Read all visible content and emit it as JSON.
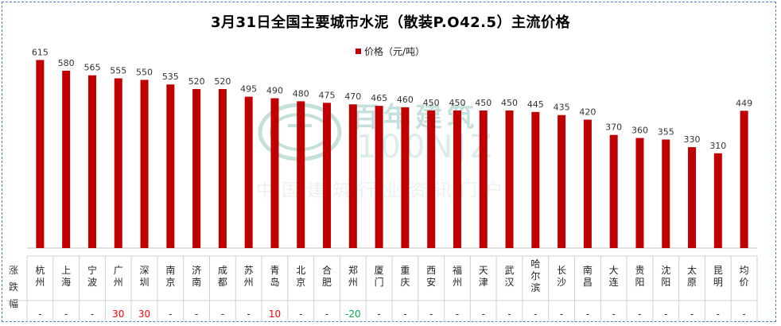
{
  "chart_data": {
    "type": "bar",
    "title": "3月31日全国主要城市水泥（散装P.O42.5）主流价格",
    "legend": "价格（元/吨）",
    "legend_position": "top-center",
    "bar_color": "#c00000",
    "ylim": [
      0,
      650
    ],
    "grid": false,
    "categories": [
      "杭州",
      "上海",
      "宁波",
      "广州",
      "深圳",
      "南京",
      "济南",
      "成都",
      "苏州",
      "青岛",
      "北京",
      "合肥",
      "郑州",
      "厦门",
      "重庆",
      "西安",
      "福州",
      "天津",
      "武汉",
      "哈尔滨",
      "长沙",
      "南昌",
      "大连",
      "贵阳",
      "沈阳",
      "太原",
      "昆明",
      "均价"
    ],
    "series": [
      {
        "name": "价格（元/吨）",
        "values": [
          615,
          580,
          565,
          555,
          550,
          535,
          520,
          520,
          495,
          490,
          480,
          475,
          470,
          465,
          460,
          450,
          450,
          450,
          450,
          445,
          435,
          420,
          370,
          360,
          355,
          330,
          310,
          449
        ]
      }
    ]
  },
  "change_row": {
    "label": "涨跌幅",
    "values": [
      "-",
      "-",
      "-",
      "30",
      "30",
      "-",
      "-",
      "-",
      "-",
      "10",
      "-",
      "-",
      "-20",
      "-",
      "-",
      "-",
      "-",
      "-",
      "-",
      "-",
      "-",
      "-",
      "-",
      "-",
      "-",
      "-",
      "-",
      "-"
    ],
    "up_color": "#ff0000",
    "down_color": "#00b050",
    "flat_color": "#333333"
  },
  "watermark": {
    "brand": "百年建筑",
    "code": "100NJZ",
    "portal": "中国建筑行业资讯门户"
  }
}
